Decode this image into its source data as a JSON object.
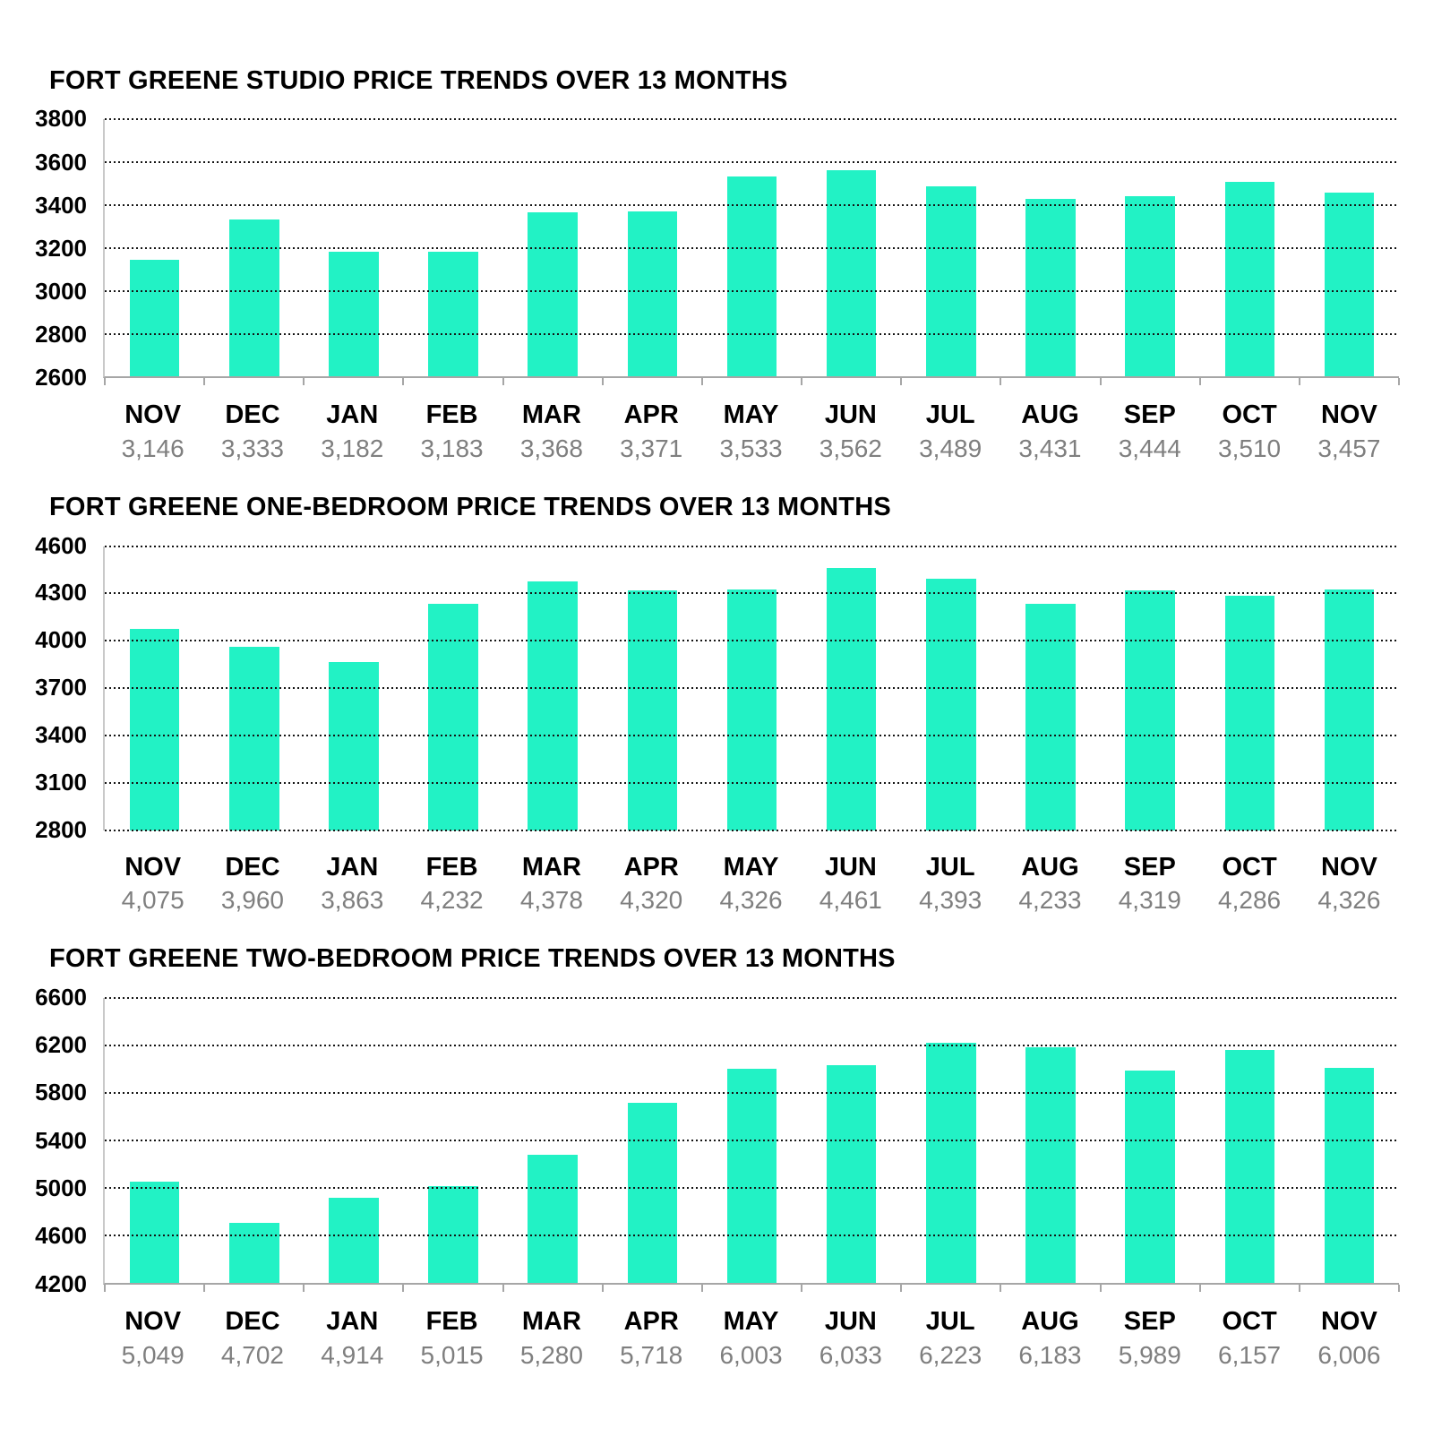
{
  "colors": {
    "bar": "#22f2c5",
    "gridline": "#141414",
    "axis": "#a6a6a6",
    "y_axis_line": "#c9c9c9",
    "month_label": "#000000",
    "value_label": "#7f7f7f",
    "title": "#000000",
    "background": "#ffffff"
  },
  "chart_data": [
    {
      "type": "bar",
      "title": "FORT GREENE STUDIO PRICE TRENDS OVER 13 MONTHS",
      "categories": [
        "NOV",
        "DEC",
        "JAN",
        "FEB",
        "MAR",
        "APR",
        "MAY",
        "JUN",
        "JUL",
        "AUG",
        "SEP",
        "OCT",
        "NOV"
      ],
      "values": [
        3146,
        3333,
        3182,
        3183,
        3368,
        3371,
        3533,
        3562,
        3489,
        3431,
        3444,
        3510,
        3457
      ],
      "value_labels": [
        "3,146",
        "3,333",
        "3,182",
        "3,183",
        "3,368",
        "3,371",
        "3,533",
        "3,562",
        "3,489",
        "3,431",
        "3,444",
        "3,510",
        "3,457"
      ],
      "xlabel": "",
      "ylabel": "",
      "ylim": [
        2600,
        3800
      ],
      "yticks": [
        3800,
        3600,
        3400,
        3200,
        3000,
        2800,
        2600
      ],
      "grid": "horizontal-dotted",
      "legend": "none",
      "baseline": "solid"
    },
    {
      "type": "bar",
      "title": "FORT GREENE ONE-BEDROOM PRICE TRENDS OVER 13 MONTHS",
      "categories": [
        "NOV",
        "DEC",
        "JAN",
        "FEB",
        "MAR",
        "APR",
        "MAY",
        "JUN",
        "JUL",
        "AUG",
        "SEP",
        "OCT",
        "NOV"
      ],
      "values": [
        4075,
        3960,
        3863,
        4232,
        4378,
        4320,
        4326,
        4461,
        4393,
        4233,
        4319,
        4286,
        4326
      ],
      "value_labels": [
        "4,075",
        "3,960",
        "3,863",
        "4,232",
        "4,378",
        "4,320",
        "4,326",
        "4,461",
        "4,393",
        "4,233",
        "4,319",
        "4,286",
        "4,326"
      ],
      "xlabel": "",
      "ylabel": "",
      "ylim": [
        2800,
        4600
      ],
      "yticks": [
        4600,
        4300,
        4000,
        3700,
        3400,
        3100,
        2800
      ],
      "grid": "horizontal-dotted",
      "legend": "none",
      "baseline": "dotted"
    },
    {
      "type": "bar",
      "title": "FORT GREENE TWO-BEDROOM PRICE TRENDS OVER 13 MONTHS",
      "categories": [
        "NOV",
        "DEC",
        "JAN",
        "FEB",
        "MAR",
        "APR",
        "MAY",
        "JUN",
        "JUL",
        "AUG",
        "SEP",
        "OCT",
        "NOV"
      ],
      "values": [
        5049,
        4702,
        4914,
        5015,
        5280,
        5718,
        6003,
        6033,
        6223,
        6183,
        5989,
        6157,
        6006
      ],
      "value_labels": [
        "5,049",
        "4,702",
        "4,914",
        "5,015",
        "5,280",
        "5,718",
        "6,003",
        "6,033",
        "6,223",
        "6,183",
        "5,989",
        "6,157",
        "6,006"
      ],
      "xlabel": "",
      "ylabel": "",
      "ylim": [
        4200,
        6600
      ],
      "yticks": [
        6600,
        6200,
        5800,
        5400,
        5000,
        4600,
        4200
      ],
      "grid": "horizontal-dotted",
      "legend": "none",
      "baseline": "solid"
    }
  ]
}
